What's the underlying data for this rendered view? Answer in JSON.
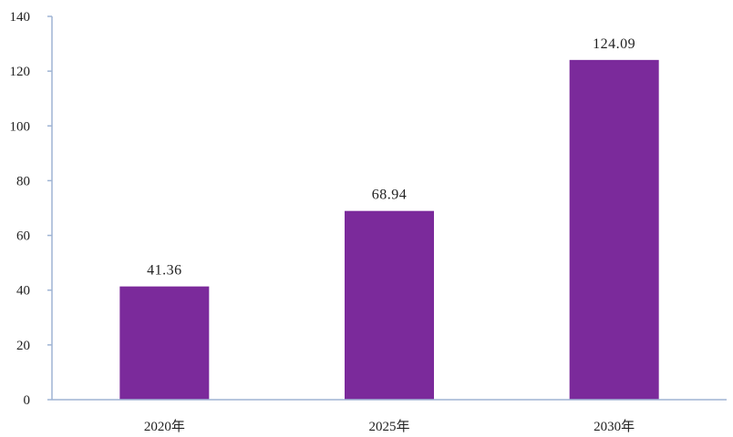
{
  "chart_data": {
    "type": "bar",
    "categories": [
      "2020年",
      "2025年",
      "2030年"
    ],
    "values": [
      41.36,
      68.94,
      124.09
    ],
    "data_labels": [
      "41.36",
      "68.94",
      "124.09"
    ],
    "y_ticks": [
      "0",
      "20",
      "40",
      "60",
      "80",
      "100",
      "120",
      "140"
    ],
    "ylim": [
      0,
      140
    ],
    "title": "",
    "xlabel": "",
    "ylabel": "",
    "grid": false,
    "legend": "none",
    "colors": {
      "bar": "#7b2a9b",
      "axis": "#9fb4d4",
      "text": "#222222"
    }
  }
}
